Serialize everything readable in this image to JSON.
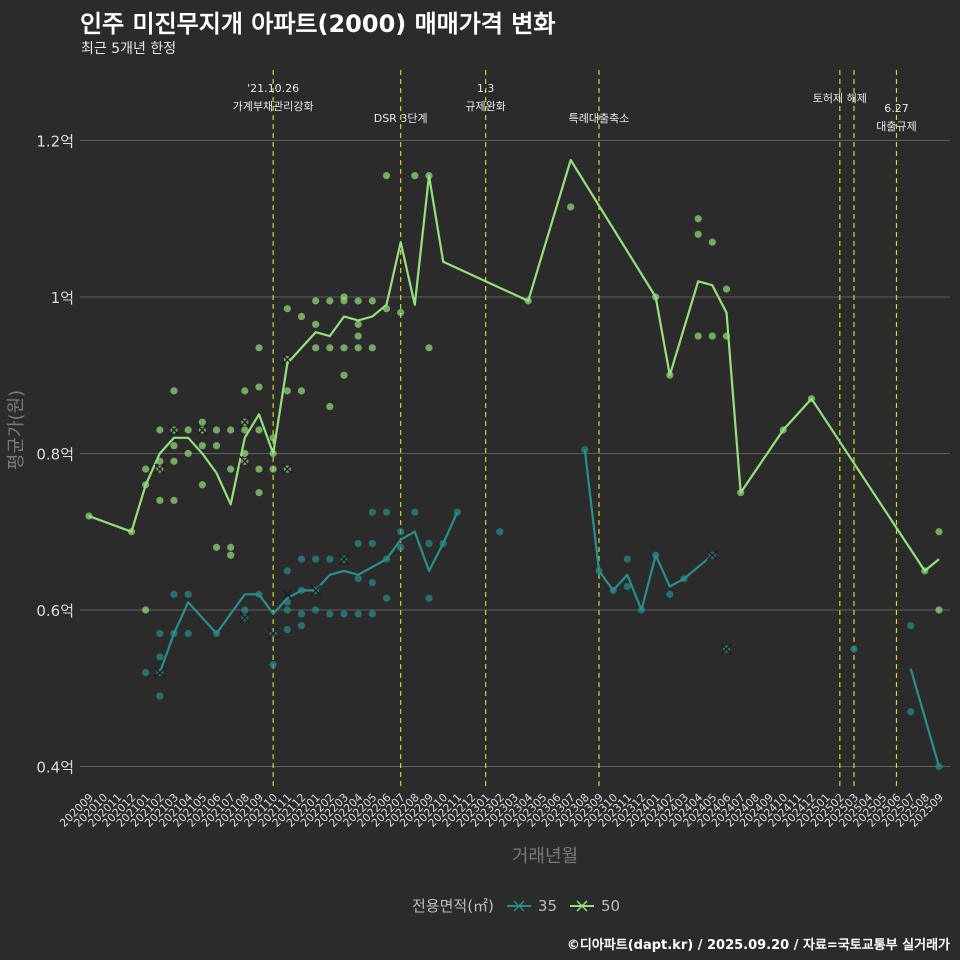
{
  "header": {
    "title": "인주 미진무지개 아파트(2000) 매매가격 변화",
    "subtitle": "최근 5개년 한정"
  },
  "caption": "©디아파트(dapt.kr) / 2025.09.20 / 자료=국토교통부 실거래가",
  "legend": {
    "title": "전용면적(㎡)",
    "items": [
      {
        "label": "35",
        "color": "#2a8e8c"
      },
      {
        "label": "50",
        "color": "#96e07d"
      }
    ]
  },
  "chart_data": {
    "type": "line",
    "xlabel": "거래년월",
    "ylabel": "평균가(원)",
    "ylim": [
      0.37,
      1.29
    ],
    "y_ticks": [
      {
        "value": 0.4,
        "label": "0.4억"
      },
      {
        "value": 0.6,
        "label": "0.6억"
      },
      {
        "value": 0.8,
        "label": "0.8억"
      },
      {
        "value": 1.0,
        "label": "1억"
      },
      {
        "value": 1.2,
        "label": "1.2억"
      }
    ],
    "categories": [
      "202009",
      "202010",
      "202011",
      "202012",
      "202101",
      "202102",
      "202103",
      "202104",
      "202105",
      "202106",
      "202107",
      "202108",
      "202109",
      "202110",
      "202111",
      "202112",
      "202201",
      "202202",
      "202203",
      "202204",
      "202205",
      "202206",
      "202207",
      "202208",
      "202209",
      "202210",
      "202211",
      "202212",
      "202301",
      "202302",
      "202303",
      "202304",
      "202305",
      "202306",
      "202307",
      "202308",
      "202309",
      "202310",
      "202311",
      "202312",
      "202401",
      "202402",
      "202403",
      "202404",
      "202405",
      "202406",
      "202407",
      "202408",
      "202409",
      "202410",
      "202411",
      "202412",
      "202501",
      "202502",
      "202503",
      "202504",
      "202505",
      "202506",
      "202507",
      "202508",
      "202509"
    ],
    "series": [
      {
        "name": "35",
        "color": "#2a8e8c",
        "segments": [
          [
            [
              "202102",
              0.52
            ],
            [
              "202103",
              0.57
            ],
            [
              "202104",
              0.61
            ],
            [
              "202106",
              0.57
            ],
            [
              "202108",
              0.62
            ],
            [
              "202109",
              0.62
            ],
            [
              "202110",
              0.595
            ],
            [
              "202111",
              0.615
            ],
            [
              "202112",
              0.625
            ],
            [
              "202201",
              0.625
            ],
            [
              "202202",
              0.645
            ],
            [
              "202203",
              0.65
            ],
            [
              "202204",
              0.645
            ],
            [
              "202205",
              0.655
            ],
            [
              "202206",
              0.665
            ],
            [
              "202207",
              0.69
            ],
            [
              "202208",
              0.7
            ],
            [
              "202209",
              0.65
            ],
            [
              "202210",
              0.685
            ],
            [
              "202211",
              0.725
            ]
          ],
          [
            [
              "202308",
              0.805
            ],
            [
              "202309",
              0.65
            ],
            [
              "202310",
              0.625
            ],
            [
              "202311",
              0.645
            ],
            [
              "202312",
              0.6
            ],
            [
              "202401",
              0.67
            ],
            [
              "202402",
              0.63
            ],
            [
              "202403",
              0.64
            ],
            [
              "202405",
              0.67
            ]
          ],
          [
            [
              "202507",
              0.525
            ],
            [
              "202509",
              0.4
            ]
          ]
        ],
        "points": [
          [
            "202101",
            0.52
          ],
          [
            "202102",
            0.52
          ],
          [
            "202102",
            0.49
          ],
          [
            "202102",
            0.54
          ],
          [
            "202102",
            0.57
          ],
          [
            "202103",
            0.57
          ],
          [
            "202103",
            0.62
          ],
          [
            "202104",
            0.57
          ],
          [
            "202104",
            0.62
          ],
          [
            "202106",
            0.57
          ],
          [
            "202108",
            0.59
          ],
          [
            "202108",
            0.6
          ],
          [
            "202109",
            0.62
          ],
          [
            "202110",
            0.57
          ],
          [
            "202110",
            0.53
          ],
          [
            "202111",
            0.575
          ],
          [
            "202111",
            0.61
          ],
          [
            "202111",
            0.65
          ],
          [
            "202111",
            0.6
          ],
          [
            "202112",
            0.58
          ],
          [
            "202112",
            0.625
          ],
          [
            "202112",
            0.665
          ],
          [
            "202112",
            0.595
          ],
          [
            "202201",
            0.6
          ],
          [
            "202201",
            0.625
          ],
          [
            "202201",
            0.665
          ],
          [
            "202202",
            0.595
          ],
          [
            "202202",
            0.665
          ],
          [
            "202203",
            0.595
          ],
          [
            "202203",
            0.665
          ],
          [
            "202204",
            0.595
          ],
          [
            "202204",
            0.685
          ],
          [
            "202204",
            0.64
          ],
          [
            "202205",
            0.595
          ],
          [
            "202205",
            0.725
          ],
          [
            "202205",
            0.685
          ],
          [
            "202205",
            0.635
          ],
          [
            "202206",
            0.725
          ],
          [
            "202206",
            0.615
          ],
          [
            "202206",
            0.665
          ],
          [
            "202207",
            0.7
          ],
          [
            "202207",
            0.68
          ],
          [
            "202208",
            0.725
          ],
          [
            "202209",
            0.685
          ],
          [
            "202209",
            0.615
          ],
          [
            "202210",
            0.685
          ],
          [
            "202211",
            0.725
          ],
          [
            "202302",
            0.7
          ],
          [
            "202308",
            0.805
          ],
          [
            "202309",
            0.65
          ],
          [
            "202310",
            0.625
          ],
          [
            "202311",
            0.665
          ],
          [
            "202311",
            0.63
          ],
          [
            "202312",
            0.6
          ],
          [
            "202401",
            0.67
          ],
          [
            "202402",
            0.62
          ],
          [
            "202403",
            0.64
          ],
          [
            "202405",
            0.67
          ],
          [
            "202406",
            0.55
          ],
          [
            "202503",
            0.55
          ],
          [
            "202507",
            0.58
          ],
          [
            "202507",
            0.47
          ],
          [
            "202509",
            0.4
          ]
        ],
        "cancelled": [
          [
            "202102",
            0.52
          ],
          [
            "202108",
            0.59
          ],
          [
            "202110",
            0.57
          ],
          [
            "202111",
            0.62
          ],
          [
            "202201",
            0.625
          ],
          [
            "202203",
            0.665
          ],
          [
            "202405",
            0.67
          ],
          [
            "202406",
            0.55
          ]
        ]
      },
      {
        "name": "50",
        "color": "#96e07d",
        "segments": [
          [
            [
              "202009",
              0.72
            ],
            [
              "202012",
              0.7
            ],
            [
              "202101",
              0.76
            ],
            [
              "202102",
              0.8
            ],
            [
              "202103",
              0.82
            ],
            [
              "202104",
              0.82
            ],
            [
              "202105",
              0.8
            ],
            [
              "202106",
              0.775
            ],
            [
              "202107",
              0.735
            ],
            [
              "202108",
              0.82
            ],
            [
              "202109",
              0.85
            ],
            [
              "202110",
              0.8
            ],
            [
              "202111",
              0.915
            ],
            [
              "202112",
              0.935
            ],
            [
              "202201",
              0.955
            ],
            [
              "202202",
              0.95
            ],
            [
              "202203",
              0.975
            ],
            [
              "202204",
              0.97
            ],
            [
              "202205",
              0.975
            ],
            [
              "202206",
              0.99
            ],
            [
              "202207",
              1.07
            ],
            [
              "202208",
              0.99
            ],
            [
              "202209",
              1.155
            ],
            [
              "202210",
              1.045
            ],
            [
              "202304",
              0.995
            ],
            [
              "202307",
              1.175
            ],
            [
              "202401",
              1.0
            ],
            [
              "202402",
              0.9
            ],
            [
              "202404",
              1.02
            ],
            [
              "202405",
              1.015
            ],
            [
              "202406",
              0.98
            ],
            [
              "202407",
              0.75
            ],
            [
              "202410",
              0.83
            ],
            [
              "202412",
              0.87
            ],
            [
              "202508",
              0.65
            ],
            [
              "202509",
              0.665
            ]
          ]
        ],
        "points": [
          [
            "202009",
            0.72
          ],
          [
            "202012",
            0.7
          ],
          [
            "202101",
            0.78
          ],
          [
            "202101",
            0.76
          ],
          [
            "202101",
            0.6
          ],
          [
            "202102",
            0.83
          ],
          [
            "202102",
            0.78
          ],
          [
            "202102",
            0.74
          ],
          [
            "202102",
            0.79
          ],
          [
            "202103",
            0.88
          ],
          [
            "202103",
            0.83
          ],
          [
            "202103",
            0.81
          ],
          [
            "202103",
            0.79
          ],
          [
            "202103",
            0.74
          ],
          [
            "202104",
            0.83
          ],
          [
            "202104",
            0.8
          ],
          [
            "202105",
            0.84
          ],
          [
            "202105",
            0.83
          ],
          [
            "202105",
            0.81
          ],
          [
            "202105",
            0.76
          ],
          [
            "202106",
            0.83
          ],
          [
            "202106",
            0.81
          ],
          [
            "202106",
            0.68
          ],
          [
            "202107",
            0.83
          ],
          [
            "202107",
            0.78
          ],
          [
            "202107",
            0.68
          ],
          [
            "202107",
            0.67
          ],
          [
            "202108",
            0.88
          ],
          [
            "202108",
            0.84
          ],
          [
            "202108",
            0.83
          ],
          [
            "202108",
            0.8
          ],
          [
            "202108",
            0.79
          ],
          [
            "202109",
            0.935
          ],
          [
            "202109",
            0.885
          ],
          [
            "202109",
            0.83
          ],
          [
            "202109",
            0.78
          ],
          [
            "202109",
            0.75
          ],
          [
            "202110",
            0.82
          ],
          [
            "202110",
            0.8
          ],
          [
            "202110",
            0.78
          ],
          [
            "202111",
            0.985
          ],
          [
            "202111",
            0.92
          ],
          [
            "202111",
            0.88
          ],
          [
            "202111",
            0.78
          ],
          [
            "202112",
            0.975
          ],
          [
            "202112",
            0.88
          ],
          [
            "202201",
            0.995
          ],
          [
            "202201",
            0.965
          ],
          [
            "202201",
            0.935
          ],
          [
            "202202",
            0.995
          ],
          [
            "202202",
            0.935
          ],
          [
            "202202",
            0.86
          ],
          [
            "202203",
            1.0
          ],
          [
            "202203",
            0.995
          ],
          [
            "202203",
            0.935
          ],
          [
            "202203",
            0.9
          ],
          [
            "202204",
            0.995
          ],
          [
            "202204",
            0.965
          ],
          [
            "202204",
            0.95
          ],
          [
            "202204",
            0.935
          ],
          [
            "202205",
            0.995
          ],
          [
            "202205",
            0.935
          ],
          [
            "202206",
            1.155
          ],
          [
            "202206",
            0.985
          ],
          [
            "202207",
            0.98
          ],
          [
            "202208",
            1.155
          ],
          [
            "202209",
            1.155
          ],
          [
            "202209",
            0.935
          ],
          [
            "202304",
            0.995
          ],
          [
            "202307",
            1.115
          ],
          [
            "202401",
            1.0
          ],
          [
            "202402",
            0.9
          ],
          [
            "202404",
            1.1
          ],
          [
            "202404",
            1.08
          ],
          [
            "202404",
            0.95
          ],
          [
            "202405",
            1.07
          ],
          [
            "202405",
            0.95
          ],
          [
            "202406",
            1.01
          ],
          [
            "202406",
            0.95
          ],
          [
            "202407",
            0.75
          ],
          [
            "202410",
            0.83
          ],
          [
            "202412",
            0.87
          ],
          [
            "202508",
            0.65
          ],
          [
            "202509",
            0.7
          ],
          [
            "202509",
            0.6
          ]
        ],
        "cancelled": [
          [
            "202102",
            0.78
          ],
          [
            "202103",
            0.83
          ],
          [
            "202105",
            0.83
          ],
          [
            "202108",
            0.84
          ],
          [
            "202108",
            0.79
          ],
          [
            "202111",
            0.92
          ],
          [
            "202111",
            0.78
          ]
        ]
      }
    ],
    "annotations": [
      {
        "x": "202110",
        "lines": [
          "'21.10.26",
          "가계부채관리강화"
        ],
        "level": 1
      },
      {
        "x": "202207",
        "lines": [
          "DSR 3단계"
        ],
        "level": 2
      },
      {
        "x": "202301",
        "lines": [
          "1.3",
          "규제완화"
        ],
        "level": 1
      },
      {
        "x": "202309",
        "lines": [
          "특례대출축소"
        ],
        "level": 2
      },
      {
        "x": "202502",
        "lines": [
          "토허제 해제"
        ],
        "level": 1
      },
      {
        "x": "202503",
        "lines": [],
        "level": 1
      },
      {
        "x": "202506",
        "lines": [
          "6.27",
          "대출규제"
        ],
        "level": 3
      }
    ]
  }
}
